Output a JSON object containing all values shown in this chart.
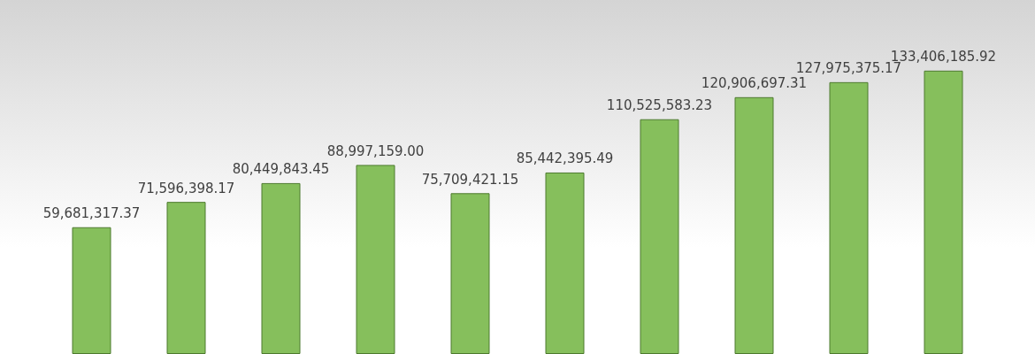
{
  "chart_data": {
    "type": "bar",
    "categories": [
      null,
      null,
      null,
      null,
      null,
      null,
      null,
      null,
      null,
      null
    ],
    "values": [
      59681317.37,
      71596398.17,
      80449843.45,
      88997159.0,
      75709421.15,
      85442395.49,
      110525583.23,
      120906697.31,
      127975375.17,
      133406185.92
    ],
    "value_labels": [
      "59,681,317.37",
      "71,596,398.17",
      "80,449,843.45",
      "88,997,159.00",
      "75,709,421.15",
      "85,442,395.49",
      "110,525,583.23",
      "120,906,697.31",
      "127,975,375.17",
      "133,406,185.92"
    ],
    "color": "#86bf5c"
  }
}
